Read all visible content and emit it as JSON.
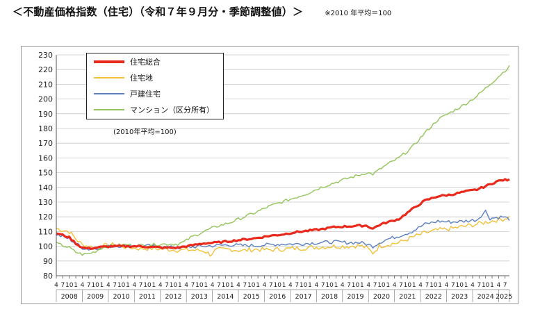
{
  "title": "＜不動産価格指数（住宅）（令和７年９月分・季節調整値）＞",
  "note": "※2010 年平均＝100",
  "chart_note": "(2010年平均=100)",
  "colors": {
    "total": "#e8291c",
    "land": "#f2c03a",
    "detached": "#5b7fbf",
    "condo": "#93c45a",
    "grid": "#c8c8c8",
    "axis": "#555555"
  },
  "chart_data": {
    "type": "line",
    "ylim": [
      80,
      230
    ],
    "yticks": [
      80,
      90,
      100,
      110,
      120,
      130,
      140,
      150,
      160,
      170,
      180,
      190,
      200,
      210,
      220,
      230
    ],
    "grid": "horizontal",
    "legend_position": "top-left",
    "month_tick_labels": [
      "4",
      "7",
      "10",
      "1"
    ],
    "years": [
      "2008",
      "2009",
      "2010",
      "2011",
      "2012",
      "2013",
      "2014",
      "2015",
      "2016",
      "2017",
      "2018",
      "2019",
      "2020",
      "2021",
      "2022",
      "2023",
      "2024",
      "2025"
    ],
    "x_start": "2008-04",
    "x_end": "2025-09",
    "series": [
      {
        "key": "total",
        "name": "住宅総合",
        "points": [
          [
            "2008-04",
            109
          ],
          [
            "2008-10",
            106
          ],
          [
            "2009-01",
            102
          ],
          [
            "2009-04",
            99
          ],
          [
            "2009-07",
            98.5
          ],
          [
            "2009-10",
            99
          ],
          [
            "2010-01",
            99.5
          ],
          [
            "2010-06",
            100
          ],
          [
            "2010-12",
            100
          ],
          [
            "2011-06",
            100
          ],
          [
            "2011-12",
            99.5
          ],
          [
            "2012-06",
            99
          ],
          [
            "2012-12",
            99
          ],
          [
            "2013-06",
            100.5
          ],
          [
            "2013-12",
            102
          ],
          [
            "2014-06",
            102.5
          ],
          [
            "2014-12",
            103.5
          ],
          [
            "2015-06",
            104.5
          ],
          [
            "2015-12",
            105.5
          ],
          [
            "2016-06",
            107
          ],
          [
            "2016-12",
            108
          ],
          [
            "2017-06",
            109.5
          ],
          [
            "2017-12",
            110.5
          ],
          [
            "2018-06",
            111.5
          ],
          [
            "2018-12",
            113
          ],
          [
            "2019-06",
            113.5
          ],
          [
            "2019-12",
            114
          ],
          [
            "2020-03",
            114
          ],
          [
            "2020-06",
            112
          ],
          [
            "2020-09",
            114.5
          ],
          [
            "2020-12",
            116
          ],
          [
            "2021-06",
            118.5
          ],
          [
            "2021-12",
            125
          ],
          [
            "2022-06",
            131
          ],
          [
            "2022-12",
            134
          ],
          [
            "2023-06",
            135
          ],
          [
            "2023-12",
            137
          ],
          [
            "2024-06",
            138.5
          ],
          [
            "2024-12",
            142
          ],
          [
            "2025-03",
            144
          ],
          [
            "2025-06",
            145
          ],
          [
            "2025-09",
            145
          ]
        ]
      },
      {
        "key": "land",
        "name": "住宅地",
        "points": [
          [
            "2008-04",
            112
          ],
          [
            "2008-10",
            110
          ],
          [
            "2009-01",
            105
          ],
          [
            "2009-04",
            101
          ],
          [
            "2009-07",
            100
          ],
          [
            "2009-10",
            99
          ],
          [
            "2010-01",
            100
          ],
          [
            "2010-06",
            101
          ],
          [
            "2010-12",
            99.5
          ],
          [
            "2011-06",
            98.5
          ],
          [
            "2011-12",
            98.5
          ],
          [
            "2012-06",
            98
          ],
          [
            "2012-12",
            97.5
          ],
          [
            "2013-06",
            97.5
          ],
          [
            "2013-12",
            97
          ],
          [
            "2014-03",
            94.5
          ],
          [
            "2014-06",
            97.5
          ],
          [
            "2014-12",
            98
          ],
          [
            "2015-06",
            97
          ],
          [
            "2015-12",
            98
          ],
          [
            "2016-06",
            97.5
          ],
          [
            "2016-12",
            98
          ],
          [
            "2017-06",
            98.5
          ],
          [
            "2017-12",
            99
          ],
          [
            "2018-06",
            99.5
          ],
          [
            "2018-12",
            100
          ],
          [
            "2019-06",
            100
          ],
          [
            "2019-12",
            100.5
          ],
          [
            "2020-03",
            99
          ],
          [
            "2020-06",
            95.5
          ],
          [
            "2020-09",
            100
          ],
          [
            "2020-12",
            101
          ],
          [
            "2021-06",
            102.5
          ],
          [
            "2021-12",
            106
          ],
          [
            "2022-06",
            109
          ],
          [
            "2022-12",
            111
          ],
          [
            "2023-06",
            112
          ],
          [
            "2023-12",
            113.5
          ],
          [
            "2024-06",
            115
          ],
          [
            "2024-12",
            117
          ],
          [
            "2025-06",
            118.5
          ],
          [
            "2025-09",
            120
          ]
        ]
      },
      {
        "key": "detached",
        "name": "戸建住宅",
        "points": [
          [
            "2008-04",
            108
          ],
          [
            "2008-10",
            105
          ],
          [
            "2009-01",
            102
          ],
          [
            "2009-04",
            99
          ],
          [
            "2009-07",
            98
          ],
          [
            "2009-10",
            98.5
          ],
          [
            "2010-01",
            99.5
          ],
          [
            "2010-06",
            100
          ],
          [
            "2010-12",
            100.5
          ],
          [
            "2011-06",
            100.5
          ],
          [
            "2011-12",
            100
          ],
          [
            "2012-06",
            99.5
          ],
          [
            "2012-12",
            99
          ],
          [
            "2013-06",
            99.5
          ],
          [
            "2013-12",
            100
          ],
          [
            "2014-06",
            100.5
          ],
          [
            "2014-12",
            101
          ],
          [
            "2015-06",
            100.5
          ],
          [
            "2015-12",
            100.5
          ],
          [
            "2016-06",
            101
          ],
          [
            "2016-12",
            101.5
          ],
          [
            "2017-06",
            101.5
          ],
          [
            "2017-12",
            102
          ],
          [
            "2018-06",
            102.5
          ],
          [
            "2018-12",
            103
          ],
          [
            "2019-06",
            102.5
          ],
          [
            "2019-12",
            102.5
          ],
          [
            "2020-03",
            101.5
          ],
          [
            "2020-06",
            100
          ],
          [
            "2020-09",
            102.5
          ],
          [
            "2020-12",
            104.5
          ],
          [
            "2021-06",
            107
          ],
          [
            "2021-12",
            110
          ],
          [
            "2022-06",
            115
          ],
          [
            "2022-12",
            117
          ],
          [
            "2023-06",
            116.5
          ],
          [
            "2023-12",
            117
          ],
          [
            "2024-06",
            118
          ],
          [
            "2024-10",
            124
          ],
          [
            "2024-12",
            119
          ],
          [
            "2025-06",
            120
          ],
          [
            "2025-09",
            118.5
          ]
        ]
      },
      {
        "key": "condo",
        "name": "マンション（区分所有）",
        "points": [
          [
            "2008-04",
            102
          ],
          [
            "2008-10",
            99
          ],
          [
            "2009-01",
            96
          ],
          [
            "2009-04",
            94.5
          ],
          [
            "2009-07",
            95
          ],
          [
            "2009-10",
            96.5
          ],
          [
            "2010-01",
            99
          ],
          [
            "2010-06",
            100.5
          ],
          [
            "2010-12",
            101
          ],
          [
            "2011-06",
            100.5
          ],
          [
            "2011-12",
            101
          ],
          [
            "2012-06",
            101.5
          ],
          [
            "2012-12",
            101.5
          ],
          [
            "2013-03",
            103
          ],
          [
            "2013-06",
            106
          ],
          [
            "2013-12",
            110
          ],
          [
            "2014-06",
            113.5
          ],
          [
            "2014-12",
            116
          ],
          [
            "2015-06",
            119.5
          ],
          [
            "2015-12",
            123
          ],
          [
            "2016-06",
            127
          ],
          [
            "2016-12",
            130
          ],
          [
            "2017-06",
            133
          ],
          [
            "2017-12",
            136
          ],
          [
            "2018-06",
            140
          ],
          [
            "2018-12",
            143
          ],
          [
            "2019-06",
            146
          ],
          [
            "2019-12",
            148.5
          ],
          [
            "2020-03",
            150
          ],
          [
            "2020-06",
            149
          ],
          [
            "2020-12",
            155
          ],
          [
            "2021-06",
            160
          ],
          [
            "2021-12",
            167
          ],
          [
            "2022-06",
            177
          ],
          [
            "2022-12",
            186
          ],
          [
            "2023-06",
            191
          ],
          [
            "2023-12",
            196
          ],
          [
            "2024-06",
            202
          ],
          [
            "2024-12",
            210
          ],
          [
            "2025-03",
            214
          ],
          [
            "2025-06",
            218
          ],
          [
            "2025-09",
            222
          ]
        ]
      }
    ]
  }
}
